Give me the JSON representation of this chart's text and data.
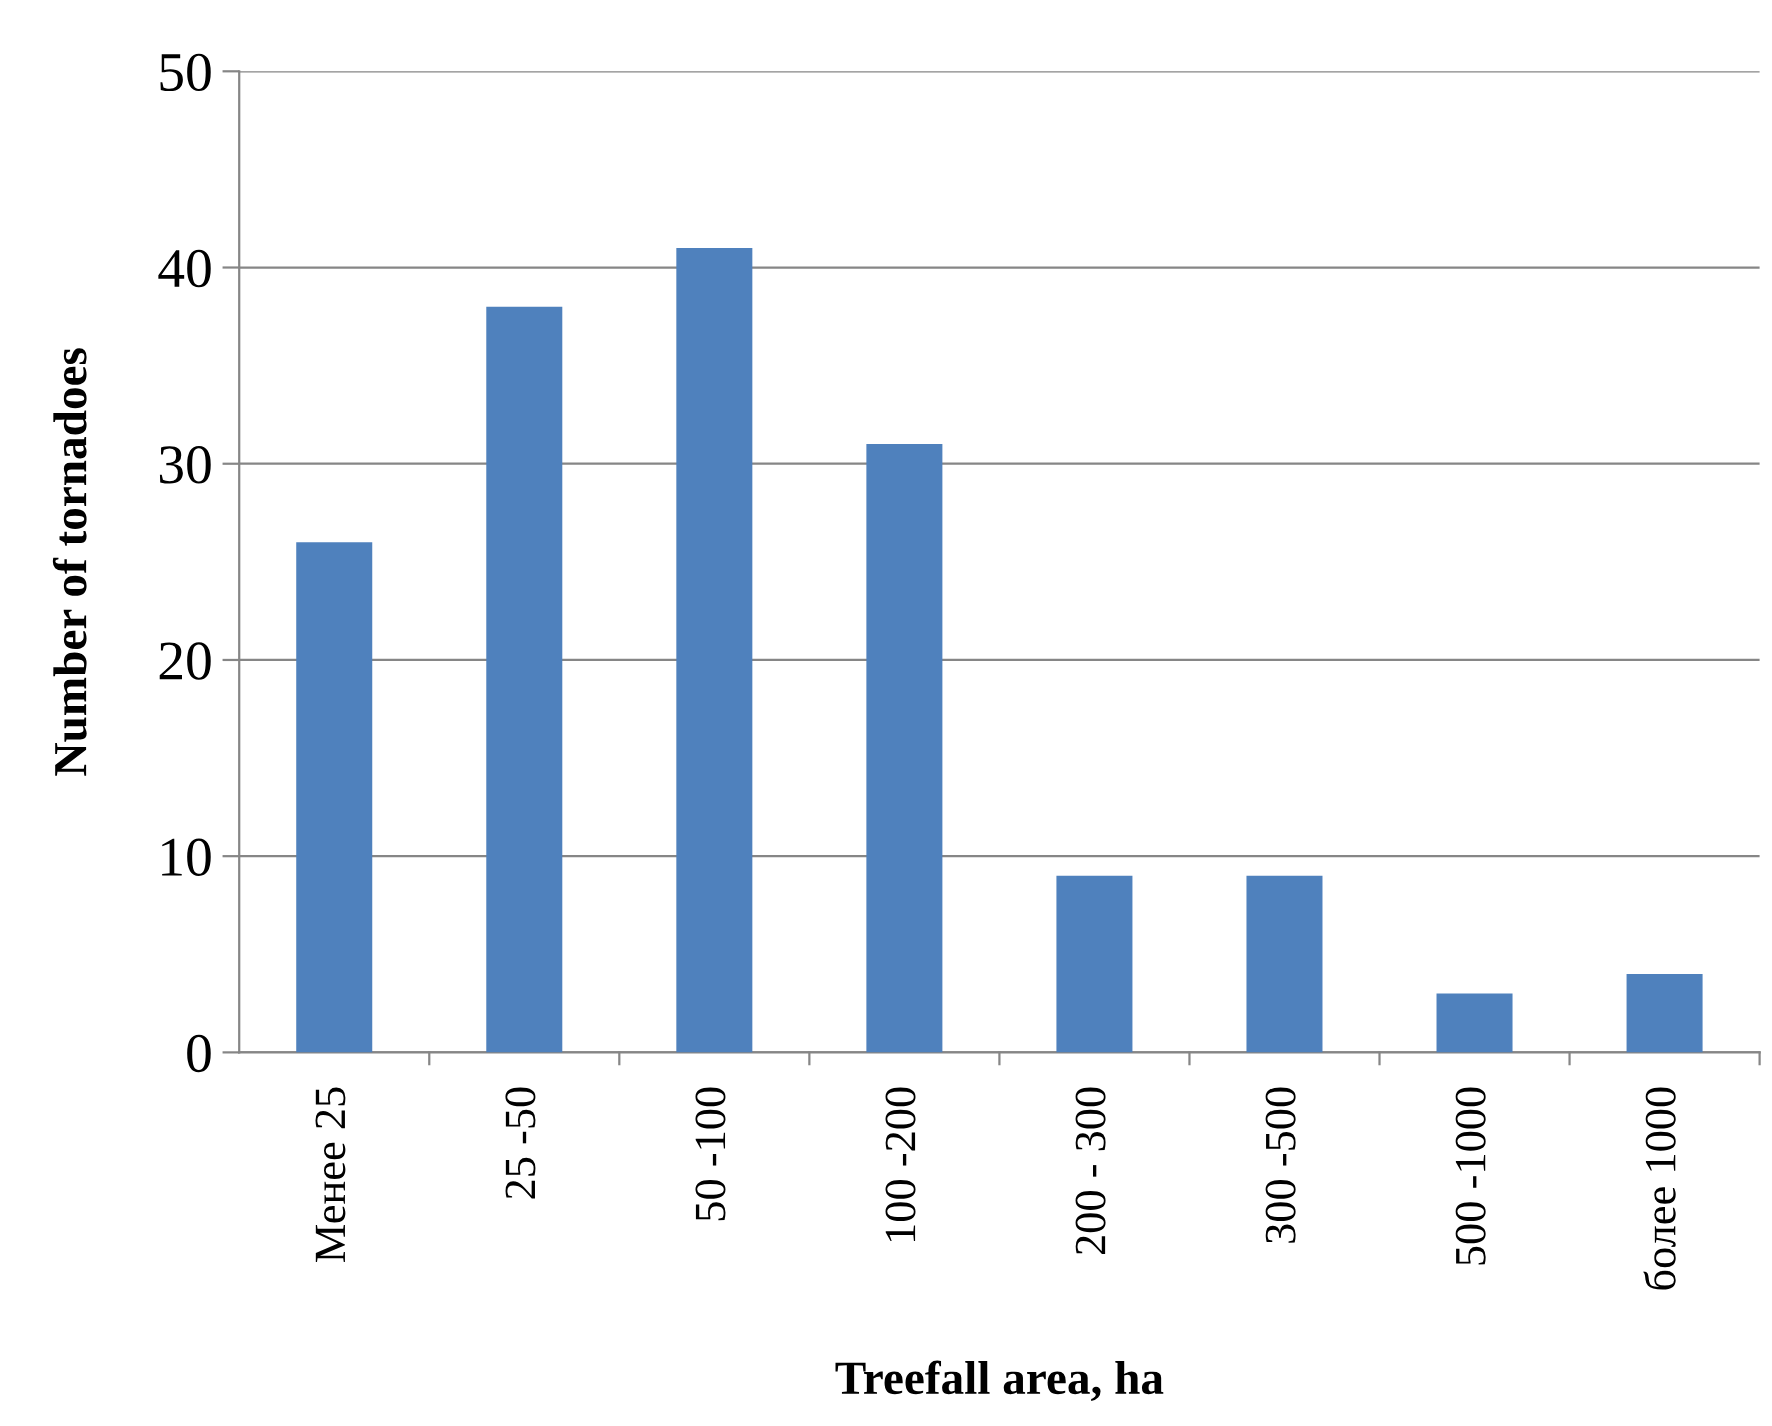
{
  "chart_data": {
    "type": "bar",
    "xlabel": "Treefall area, ha",
    "ylabel": "Number of tornadoes",
    "categories": [
      "Менее 25",
      "25 -50",
      "50 -100",
      "100 -200",
      "200 - 300",
      "300 -500",
      "500 -1000",
      "более 1000"
    ],
    "values": [
      26,
      38,
      41,
      31,
      9,
      9,
      3,
      4
    ],
    "color": "#4f81bd",
    "ylim": [
      0,
      50
    ],
    "yticks": [
      0,
      10,
      20,
      30,
      40,
      50
    ],
    "grid": "y"
  }
}
